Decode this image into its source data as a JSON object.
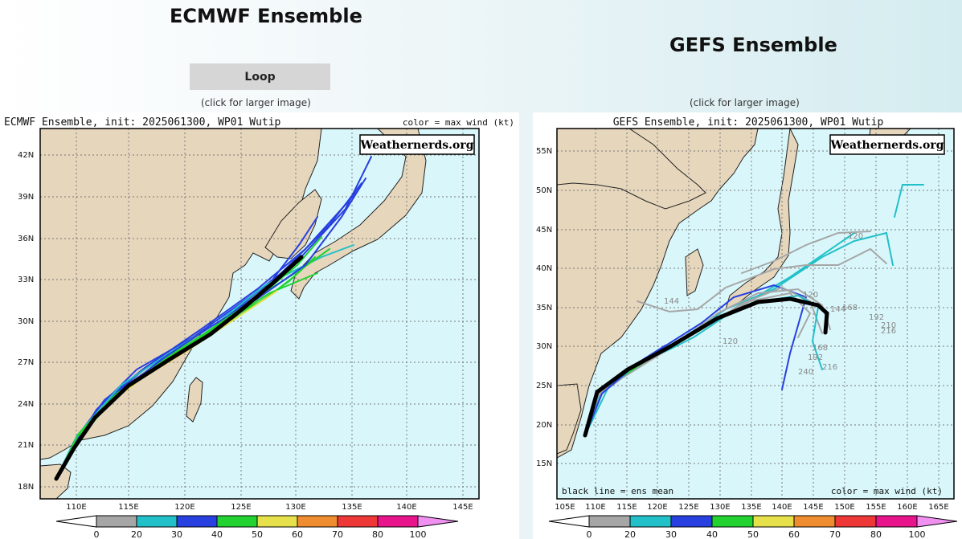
{
  "left": {
    "heading": "ECMWF Ensemble",
    "loop_label": "Loop",
    "caption": "(click for larger image)",
    "map": {
      "title": "ECMWF Ensemble, init: 2025061300, WP01 Wutip",
      "legend_note": "color = max wind (kt)",
      "watermark": "Weathernerds.org",
      "lon_ticks": [
        "110E",
        "115E",
        "120E",
        "125E",
        "130E",
        "135E",
        "140E",
        "145E"
      ],
      "lat_ticks": [
        "42N",
        "39N",
        "36N",
        "33N",
        "30N",
        "27N",
        "24N",
        "21N",
        "18N"
      ]
    },
    "colorbar": [
      "0",
      "20",
      "30",
      "40",
      "50",
      "60",
      "70",
      "80",
      "100"
    ]
  },
  "right": {
    "heading": "GEFS Ensemble",
    "caption": "(click for larger image)",
    "map": {
      "title": "GEFS Ensemble, init: 2025061300, WP01 Wutip",
      "legend_note": "color = max wind (kt)",
      "mean_note": "black line = ens mean",
      "watermark": "Weathernerds.org",
      "lon_ticks": [
        "105E",
        "110E",
        "115E",
        "120E",
        "125E",
        "130E",
        "135E",
        "140E",
        "145E",
        "150E",
        "155E",
        "160E",
        "165E"
      ],
      "lat_ticks": [
        "55N",
        "50N",
        "45N",
        "40N",
        "35N",
        "30N",
        "25N",
        "20N",
        "15N"
      ],
      "hour_labels": [
        "120",
        "144",
        "120",
        "168",
        "192",
        "216",
        "210",
        "168",
        "192",
        "216",
        "240",
        "144",
        "120"
      ]
    },
    "colorbar": [
      "0",
      "20",
      "30",
      "40",
      "50",
      "60",
      "70",
      "80",
      "100"
    ]
  },
  "colors": {
    "ocean": "#d9f7fb",
    "land": "#e6d6bc",
    "wind_bins": [
      "#ffffff",
      "#a6a6a6",
      "#22c0c8",
      "#2840e0",
      "#22d230",
      "#e6e04a",
      "#f08c30",
      "#ee3838",
      "#e8148c",
      "#f090f0"
    ]
  }
}
